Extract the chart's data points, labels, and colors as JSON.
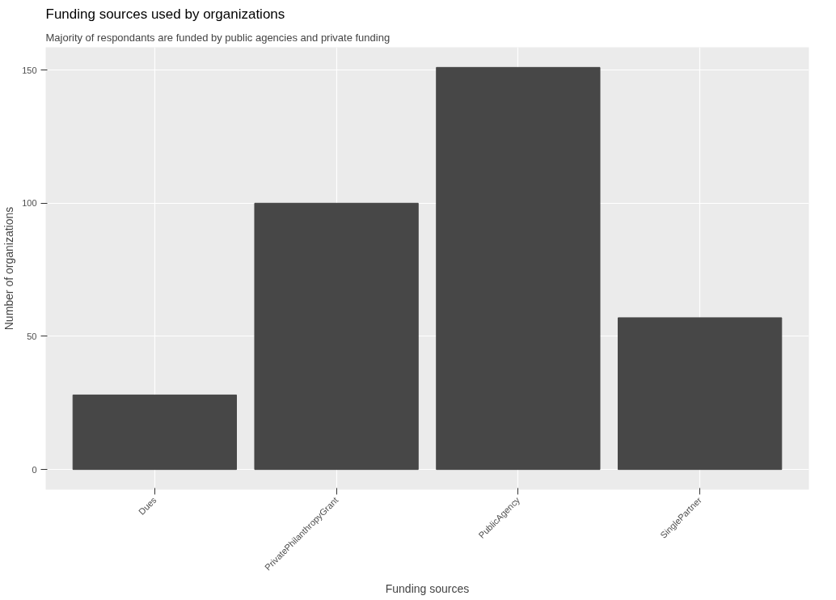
{
  "chart_data": {
    "type": "bar",
    "title": "Funding sources used by organizations",
    "subtitle": "Majority of respondants are funded by public agencies and private funding",
    "xlabel": "Funding sources",
    "ylabel": "Number of organizations",
    "categories": [
      "Dues",
      "PrivatePhilanthropyGrant",
      "PublicAgency",
      "SinglePartner"
    ],
    "values": [
      28,
      100,
      151,
      57
    ],
    "color": "#474747",
    "ylim": [
      -7.55,
      158.55
    ],
    "yticks": [
      0,
      50,
      100,
      150
    ],
    "grid": true
  }
}
